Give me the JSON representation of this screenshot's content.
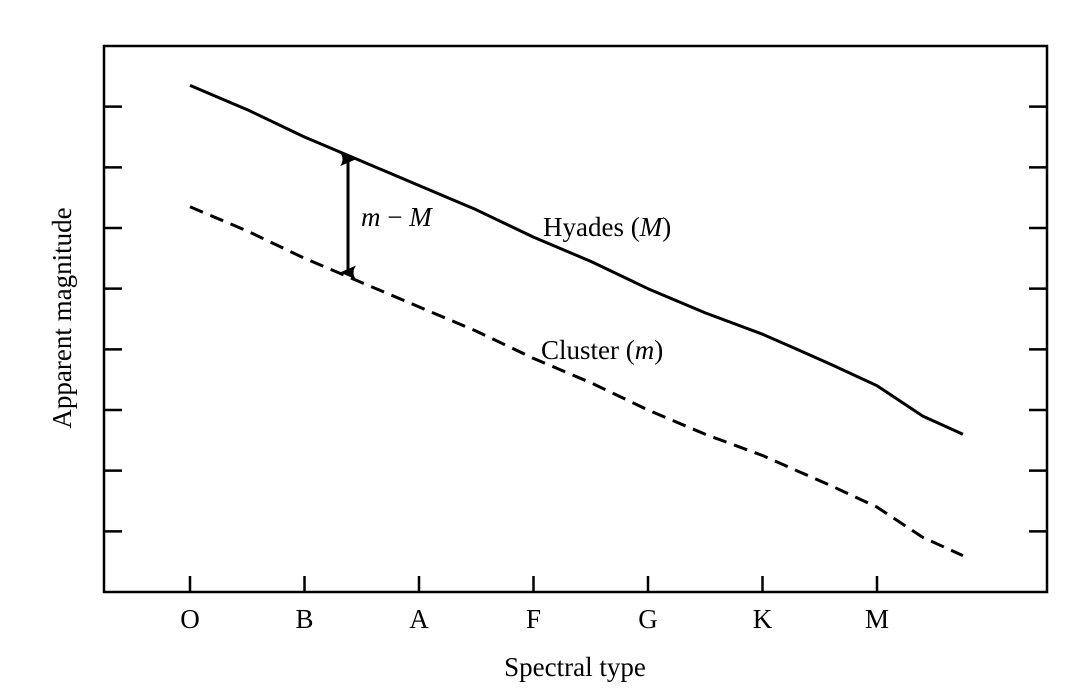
{
  "chart_data": {
    "type": "line",
    "xlabel": "Spectral type",
    "ylabel": "Apparent magnitude",
    "categories": [
      "O",
      "B",
      "A",
      "F",
      "G",
      "K",
      "M"
    ],
    "x_range": [
      -0.75,
      7.5
    ],
    "y_range": [
      0,
      9
    ],
    "y_ticks": [
      1,
      2,
      3,
      4,
      5,
      6,
      7,
      8
    ],
    "y_tick_labels_shown": false,
    "grid": false,
    "series": [
      {
        "name": "Hyades (M)",
        "label_main": "Hyades (",
        "label_italic": "M",
        "label_end": ")",
        "style": "solid",
        "x": [
          0,
          0.5,
          1,
          1.5,
          2,
          2.5,
          3,
          3.5,
          4,
          4.5,
          5,
          5.3,
          5.6,
          6,
          6.4,
          6.75
        ],
        "y": [
          8.35,
          7.95,
          7.5,
          7.1,
          6.7,
          6.3,
          5.85,
          5.45,
          5.0,
          4.6,
          4.25,
          4.0,
          3.75,
          3.4,
          2.9,
          2.6
        ]
      },
      {
        "name": "Cluster (m)",
        "label_main": "Cluster (",
        "label_italic": "m",
        "label_end": ")",
        "style": "dashed",
        "x": [
          0,
          0.5,
          1,
          1.5,
          2,
          2.5,
          3,
          3.5,
          4,
          4.5,
          5,
          5.3,
          5.6,
          6,
          6.4,
          6.75
        ],
        "y": [
          6.35,
          5.95,
          5.5,
          5.1,
          4.7,
          4.3,
          3.85,
          3.45,
          3.0,
          2.6,
          2.25,
          2.0,
          1.75,
          1.4,
          0.9,
          0.6
        ]
      }
    ],
    "annotation": {
      "type": "double-arrow",
      "x": 1.38,
      "y_top": 7.2,
      "y_bottom": 5.2,
      "label_m": "m",
      "label_minus": " − ",
      "label_M": "M"
    }
  }
}
